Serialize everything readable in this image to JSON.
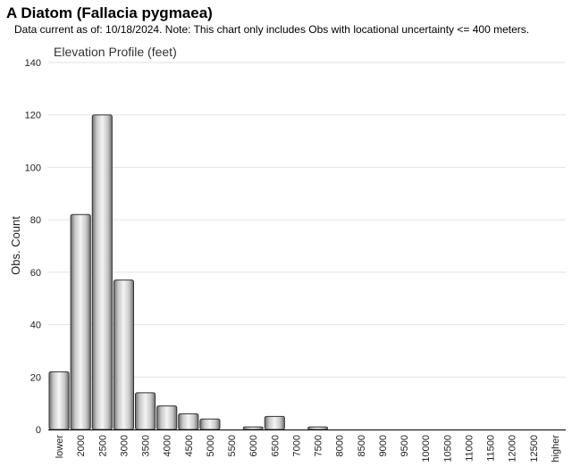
{
  "header": {
    "title": "A Diatom   (Fallacia pygmaea)",
    "subtitle": "Data current as of: 10/18/2024.    Note: This chart only includes Obs with locational uncertainty <= 400 meters."
  },
  "chart_data": {
    "type": "bar",
    "title": "Elevation Profile (feet)",
    "xlabel": "",
    "ylabel": "Obs. Count",
    "ylim": [
      0,
      140
    ],
    "yticks": [
      0,
      20,
      40,
      60,
      80,
      100,
      120,
      140
    ],
    "grid": true,
    "categories": [
      "lower",
      "2000",
      "2500",
      "3000",
      "3500",
      "4000",
      "4500",
      "5000",
      "5500",
      "6000",
      "6500",
      "7000",
      "7500",
      "8000",
      "8500",
      "9000",
      "9500",
      "10000",
      "10500",
      "11000",
      "11500",
      "12000",
      "12500",
      "higher"
    ],
    "values": [
      22,
      82,
      120,
      57,
      14,
      9,
      6,
      4,
      0,
      1,
      5,
      0,
      1,
      0,
      0,
      0,
      0,
      0,
      0,
      0,
      0,
      0,
      0,
      0
    ],
    "bar_color": "#b8b8b8"
  }
}
